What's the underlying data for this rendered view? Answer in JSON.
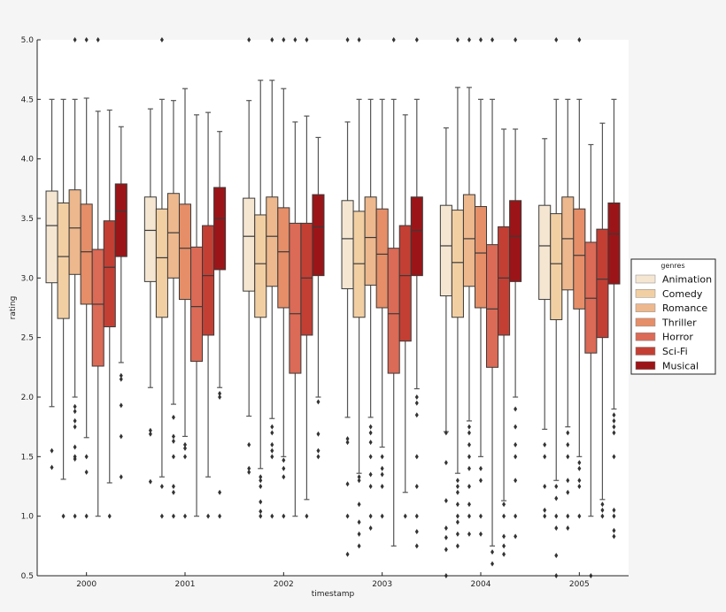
{
  "chart_data": {
    "type": "boxplot",
    "title": "",
    "xlabel": "timestamp",
    "ylabel": "rating",
    "ylim": [
      0.5,
      5.0
    ],
    "yticks": [
      "0.5",
      "1.0",
      "1.5",
      "2.0",
      "2.5",
      "3.0",
      "3.5",
      "4.0",
      "4.5",
      "5.0"
    ],
    "categories": [
      "2000",
      "2001",
      "2002",
      "2003",
      "2004",
      "2005"
    ],
    "grid": false,
    "legend": {
      "title": "genres",
      "placement": "right"
    },
    "series": [
      {
        "name": "Animation",
        "color": "#f5e6d2",
        "boxes": [
          {
            "whislo": 1.92,
            "q1": 2.96,
            "med": 3.44,
            "q3": 3.73,
            "whishi": 4.5,
            "fliers": [
              1.55,
              1.41
            ]
          },
          {
            "whislo": 2.08,
            "q1": 2.97,
            "med": 3.4,
            "q3": 3.68,
            "whishi": 4.42,
            "fliers": [
              1.72,
              1.69,
              1.29
            ]
          },
          {
            "whislo": 1.84,
            "q1": 2.89,
            "med": 3.35,
            "q3": 3.67,
            "whishi": 4.49,
            "fliers": [
              1.6,
              1.4,
              1.37,
              5.0
            ]
          },
          {
            "whislo": 1.83,
            "q1": 2.91,
            "med": 3.33,
            "q3": 3.65,
            "whishi": 4.31,
            "fliers": [
              1.65,
              1.62,
              1.27,
              1.0,
              0.68,
              5.0
            ]
          },
          {
            "whislo": 1.71,
            "q1": 2.85,
            "med": 3.27,
            "q3": 3.61,
            "whishi": 4.26,
            "fliers": [
              1.7,
              1.45,
              1.13,
              0.9,
              0.82,
              0.72,
              0.5
            ]
          },
          {
            "whislo": 1.73,
            "q1": 2.82,
            "med": 3.27,
            "q3": 3.61,
            "whishi": 4.17,
            "fliers": [
              1.6,
              1.5,
              1.25,
              1.05,
              1.0
            ]
          }
        ]
      },
      {
        "name": "Comedy",
        "color": "#f2cfa3",
        "boxes": [
          {
            "whislo": 1.31,
            "q1": 2.66,
            "med": 3.18,
            "q3": 3.63,
            "whishi": 4.5,
            "fliers": [
              1.0
            ]
          },
          {
            "whislo": 1.33,
            "q1": 2.67,
            "med": 3.17,
            "q3": 3.58,
            "whishi": 4.5,
            "fliers": [
              1.25,
              1.0,
              5.0
            ]
          },
          {
            "whislo": 1.4,
            "q1": 2.67,
            "med": 3.12,
            "q3": 3.53,
            "whishi": 4.66,
            "fliers": [
              1.33,
              1.3,
              1.25,
              1.12,
              1.04,
              1.0
            ]
          },
          {
            "whislo": 1.36,
            "q1": 2.67,
            "med": 3.12,
            "q3": 3.56,
            "whishi": 4.5,
            "fliers": [
              1.33,
              1.3,
              1.1,
              0.95,
              0.85,
              0.75,
              5.0
            ]
          },
          {
            "whislo": 1.36,
            "q1": 2.67,
            "med": 3.13,
            "q3": 3.57,
            "whishi": 4.6,
            "fliers": [
              1.3,
              1.25,
              1.2,
              1.1,
              1.0,
              0.95,
              0.85,
              0.75,
              5.0
            ]
          },
          {
            "whislo": 1.3,
            "q1": 2.65,
            "med": 3.12,
            "q3": 3.54,
            "whishi": 4.5,
            "fliers": [
              1.25,
              1.15,
              1.0,
              0.9,
              0.67,
              0.5,
              5.0
            ]
          }
        ]
      },
      {
        "name": "Romance",
        "color": "#edb88d",
        "boxes": [
          {
            "whislo": 2.0,
            "q1": 3.03,
            "med": 3.42,
            "q3": 3.74,
            "whishi": 4.5,
            "fliers": [
              1.92,
              1.88,
              1.8,
              1.75,
              1.58,
              1.5,
              1.48,
              1.0,
              5.0
            ]
          },
          {
            "whislo": 1.94,
            "q1": 3.0,
            "med": 3.38,
            "q3": 3.71,
            "whishi": 4.49,
            "fliers": [
              1.83,
              1.67,
              1.63,
              1.5,
              1.25,
              1.2,
              1.0
            ]
          },
          {
            "whislo": 1.82,
            "q1": 2.93,
            "med": 3.35,
            "q3": 3.68,
            "whishi": 4.66,
            "fliers": [
              1.75,
              1.7,
              1.6,
              1.55,
              1.5,
              1.0,
              5.0
            ]
          },
          {
            "whislo": 1.83,
            "q1": 2.94,
            "med": 3.34,
            "q3": 3.68,
            "whishi": 4.5,
            "fliers": [
              1.75,
              1.7,
              1.62,
              1.5,
              1.35,
              1.25,
              1.0,
              0.9
            ]
          },
          {
            "whislo": 1.8,
            "q1": 2.93,
            "med": 3.33,
            "q3": 3.7,
            "whishi": 4.6,
            "fliers": [
              1.75,
              1.7,
              1.6,
              1.5,
              1.4,
              1.25,
              1.1,
              1.0,
              0.85,
              5.0
            ]
          },
          {
            "whislo": 1.75,
            "q1": 2.9,
            "med": 3.33,
            "q3": 3.68,
            "whishi": 4.5,
            "fliers": [
              1.7,
              1.6,
              1.5,
              1.3,
              1.2,
              1.0,
              0.9
            ]
          }
        ]
      },
      {
        "name": "Thriller",
        "color": "#e58e68",
        "boxes": [
          {
            "whislo": 1.66,
            "q1": 2.78,
            "med": 3.22,
            "q3": 3.62,
            "whishi": 4.51,
            "fliers": [
              1.5,
              1.37,
              1.0,
              5.0
            ]
          },
          {
            "whislo": 1.67,
            "q1": 2.82,
            "med": 3.25,
            "q3": 3.62,
            "whishi": 4.59,
            "fliers": [
              1.6,
              1.57,
              1.5,
              1.0
            ]
          },
          {
            "whislo": 1.5,
            "q1": 2.75,
            "med": 3.22,
            "q3": 3.59,
            "whishi": 4.59,
            "fliers": [
              1.47,
              1.4,
              1.33,
              1.0,
              5.0
            ]
          },
          {
            "whislo": 1.58,
            "q1": 2.75,
            "med": 3.2,
            "q3": 3.58,
            "whishi": 4.5,
            "fliers": [
              1.5,
              1.4,
              1.35,
              1.25,
              1.0
            ]
          },
          {
            "whislo": 1.5,
            "q1": 2.75,
            "med": 3.21,
            "q3": 3.6,
            "whishi": 4.5,
            "fliers": [
              1.4,
              1.3,
              1.0,
              0.85,
              5.0
            ]
          },
          {
            "whislo": 1.5,
            "q1": 2.74,
            "med": 3.19,
            "q3": 3.58,
            "whishi": 4.5,
            "fliers": [
              1.45,
              1.4,
              1.3,
              1.25,
              1.0,
              5.0
            ]
          }
        ]
      },
      {
        "name": "Horror",
        "color": "#db6a56",
        "boxes": [
          {
            "whislo": 1.0,
            "q1": 2.26,
            "med": 2.78,
            "q3": 3.24,
            "whishi": 4.4,
            "fliers": [
              5.0
            ]
          },
          {
            "whislo": 1.0,
            "q1": 2.3,
            "med": 2.76,
            "q3": 3.26,
            "whishi": 4.37,
            "fliers": []
          },
          {
            "whislo": 1.0,
            "q1": 2.2,
            "med": 2.7,
            "q3": 3.46,
            "whishi": 4.31,
            "fliers": [
              5.0
            ]
          },
          {
            "whislo": 0.75,
            "q1": 2.2,
            "med": 2.7,
            "q3": 3.25,
            "whishi": 4.5,
            "fliers": [
              5.0
            ]
          },
          {
            "whislo": 0.75,
            "q1": 2.25,
            "med": 2.74,
            "q3": 3.28,
            "whishi": 4.5,
            "fliers": [
              0.7,
              0.6,
              5.0
            ]
          },
          {
            "whislo": 1.0,
            "q1": 2.37,
            "med": 2.83,
            "q3": 3.3,
            "whishi": 4.12,
            "fliers": [
              0.5
            ]
          }
        ]
      },
      {
        "name": "Sci-Fi",
        "color": "#c33f34",
        "boxes": [
          {
            "whislo": 1.28,
            "q1": 2.59,
            "med": 3.09,
            "q3": 3.48,
            "whishi": 4.41,
            "fliers": [
              1.0
            ]
          },
          {
            "whislo": 1.33,
            "q1": 2.52,
            "med": 3.02,
            "q3": 3.44,
            "whishi": 4.39,
            "fliers": [
              1.0
            ]
          },
          {
            "whislo": 1.14,
            "q1": 2.52,
            "med": 3.0,
            "q3": 3.46,
            "whishi": 4.36,
            "fliers": [
              1.0,
              5.0
            ]
          },
          {
            "whislo": 1.2,
            "q1": 2.47,
            "med": 3.02,
            "q3": 3.44,
            "whishi": 4.37,
            "fliers": [
              1.0
            ]
          },
          {
            "whislo": 1.13,
            "q1": 2.52,
            "med": 3.0,
            "q3": 3.43,
            "whishi": 4.25,
            "fliers": [
              1.1,
              1.0,
              0.83,
              0.75,
              0.68
            ]
          },
          {
            "whislo": 1.14,
            "q1": 2.5,
            "med": 2.99,
            "q3": 3.41,
            "whishi": 4.3,
            "fliers": [
              1.1,
              1.05,
              1.0
            ]
          }
        ]
      },
      {
        "name": "Musical",
        "color": "#9b1518",
        "boxes": [
          {
            "whislo": 2.29,
            "q1": 3.18,
            "med": 3.56,
            "q3": 3.79,
            "whishi": 4.27,
            "fliers": [
              2.18,
              2.15,
              1.93,
              1.67,
              1.33
            ]
          },
          {
            "whislo": 2.08,
            "q1": 3.07,
            "med": 3.5,
            "q3": 3.76,
            "whishi": 4.23,
            "fliers": [
              2.03,
              2.0,
              1.2,
              1.0
            ]
          },
          {
            "whislo": 2.0,
            "q1": 3.02,
            "med": 3.43,
            "q3": 3.7,
            "whishi": 4.18,
            "fliers": [
              1.96,
              1.69,
              1.55,
              1.5
            ]
          },
          {
            "whislo": 2.07,
            "q1": 3.02,
            "med": 3.4,
            "q3": 3.68,
            "whishi": 4.5,
            "fliers": [
              2.0,
              1.95,
              1.85,
              1.5,
              1.25,
              1.0,
              0.87,
              0.75,
              5.0
            ]
          },
          {
            "whislo": 2.0,
            "q1": 2.97,
            "med": 3.35,
            "q3": 3.65,
            "whishi": 4.25,
            "fliers": [
              1.9,
              1.75,
              1.6,
              1.5,
              1.3,
              1.0,
              0.83,
              5.0
            ]
          },
          {
            "whislo": 1.9,
            "q1": 2.95,
            "med": 3.37,
            "q3": 3.63,
            "whishi": 4.5,
            "fliers": [
              1.85,
              1.8,
              1.75,
              1.7,
              1.5,
              1.05,
              1.0,
              0.88,
              0.83
            ]
          }
        ]
      }
    ]
  }
}
